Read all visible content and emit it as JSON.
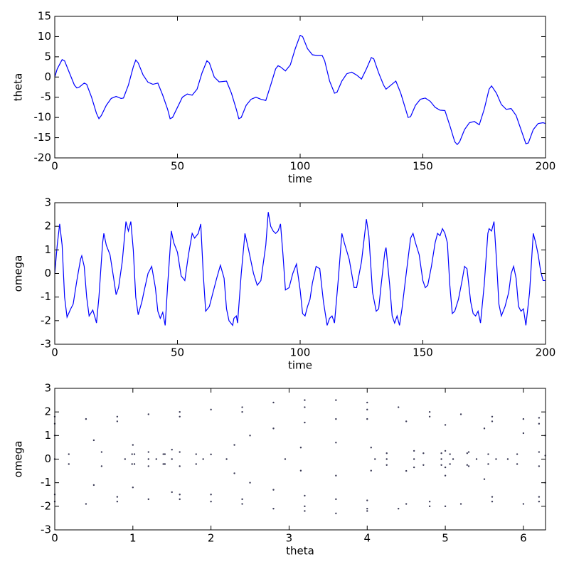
{
  "chart_data": [
    {
      "type": "line",
      "xlabel": "time",
      "ylabel": "theta",
      "color": "#0000ff",
      "xlim": [
        0,
        200
      ],
      "ylim": [
        -20,
        15
      ],
      "xticks": [
        0,
        50,
        100,
        150,
        200
      ],
      "yticks": [
        -20,
        -15,
        -10,
        -5,
        0,
        5,
        10,
        15
      ],
      "x": [
        0,
        1,
        3,
        4,
        6,
        8,
        9,
        10,
        12,
        13,
        15,
        17,
        18,
        19,
        21,
        23,
        25,
        27,
        28,
        30,
        32,
        33,
        34,
        36,
        38,
        40,
        42,
        44,
        46,
        47,
        48,
        50,
        52,
        54,
        56,
        58,
        60,
        62,
        63,
        65,
        67,
        70,
        72,
        74,
        75,
        76,
        78,
        80,
        82,
        84,
        86,
        88,
        90,
        91,
        92,
        94,
        96,
        98,
        100,
        101,
        103,
        105,
        107,
        109,
        110,
        112,
        114,
        115,
        117,
        119,
        121,
        123,
        125,
        127,
        129,
        130,
        132,
        134,
        135,
        137,
        139,
        141,
        143,
        144,
        145,
        147,
        149,
        151,
        153,
        155,
        157,
        159,
        161,
        163,
        164,
        165,
        167,
        169,
        171,
        173,
        175,
        177,
        178,
        180,
        182,
        184,
        186,
        188,
        190,
        192,
        193,
        195,
        197,
        199,
        200
      ],
      "values": [
        0,
        2,
        4.3,
        4,
        1,
        -2,
        -2.7,
        -2.5,
        -1.5,
        -1.8,
        -5,
        -9,
        -10.3,
        -9.5,
        -7,
        -5.3,
        -4.8,
        -5.3,
        -5.2,
        -2,
        2.5,
        4.2,
        3.5,
        0.5,
        -1.3,
        -1.8,
        -1.5,
        -4.5,
        -8,
        -10.3,
        -10,
        -7.5,
        -5,
        -4.2,
        -4.5,
        -3,
        1,
        4,
        3.5,
        0,
        -1.2,
        -1,
        -4,
        -8,
        -10.3,
        -10,
        -7,
        -5.5,
        -5,
        -5.5,
        -5.8,
        -2,
        2,
        2.8,
        2.5,
        1.5,
        3,
        7,
        10.3,
        10,
        7,
        5.5,
        5.3,
        5.3,
        4,
        -1,
        -4,
        -3.8,
        -1,
        0.8,
        1.2,
        0.5,
        -0.5,
        2,
        4.8,
        4.5,
        1,
        -2,
        -3,
        -2,
        -1,
        -4,
        -8,
        -10,
        -9.8,
        -7,
        -5.5,
        -5.2,
        -6,
        -7.5,
        -8.2,
        -8.3,
        -12,
        -16,
        -16.7,
        -16,
        -13,
        -11.3,
        -11,
        -11.8,
        -8,
        -3,
        -2.2,
        -4,
        -6.8,
        -8,
        -7.8,
        -9.5,
        -13,
        -16.5,
        -16.3,
        -13,
        -11.5,
        -11.3,
        -11.5
      ]
    },
    {
      "type": "line",
      "xlabel": "time",
      "ylabel": "omega",
      "color": "#0000ff",
      "xlim": [
        0,
        200
      ],
      "ylim": [
        -3,
        3
      ],
      "xticks": [
        0,
        50,
        100,
        150,
        200
      ],
      "yticks": [
        -3,
        -2,
        -1,
        0,
        1,
        2,
        3
      ],
      "x": [
        0,
        1,
        2,
        3,
        4,
        5,
        6.5,
        7.5,
        9,
        10.5,
        11,
        12,
        13,
        14,
        15.5,
        16.5,
        17,
        18,
        19.5,
        20,
        21,
        22.5,
        24,
        25,
        26,
        27.5,
        29,
        30,
        31,
        32,
        33,
        34,
        35.5,
        36.5,
        38,
        39.5,
        41,
        42,
        43,
        44,
        45,
        46,
        47.5,
        48.5,
        50,
        51.5,
        53,
        54.5,
        56,
        57,
        58.5,
        59.5,
        60.5,
        61.5,
        63,
        64.5,
        66,
        67.5,
        69,
        70,
        71,
        72.5,
        73,
        74,
        74.5,
        76,
        77.5,
        79,
        81,
        82.5,
        84,
        86,
        87,
        88,
        89,
        90,
        91,
        92,
        93,
        94,
        95.5,
        97,
        98.5,
        100,
        101,
        102,
        103,
        104,
        105,
        106.5,
        108,
        109.5,
        111,
        112,
        113,
        114,
        115.5,
        117,
        118,
        120,
        122,
        123,
        125,
        127,
        128,
        129.5,
        131,
        132,
        133,
        134.5,
        135,
        136.5,
        137.5,
        138.5,
        139.5,
        140.5,
        141.5,
        143,
        145,
        146,
        147,
        148.5,
        150,
        151,
        152,
        153.5,
        155,
        156,
        157,
        158,
        159,
        160,
        161,
        162,
        163,
        164.5,
        166,
        167,
        168,
        169.5,
        170.5,
        171.5,
        172.5,
        173.5,
        175,
        176.5,
        177,
        178,
        179,
        180,
        181,
        182,
        183.5,
        185,
        186,
        187,
        188,
        189,
        190,
        191,
        192,
        193.5,
        195,
        196,
        197,
        198,
        199,
        200
      ],
      "values": [
        0,
        1.2,
        2.1,
        1.2,
        -1,
        -1.85,
        -1.5,
        -1.3,
        -0.3,
        0.6,
        0.75,
        0.3,
        -1,
        -1.8,
        -1.55,
        -1.9,
        -2.1,
        -1,
        1.3,
        1.7,
        1.2,
        0.8,
        -0.2,
        -0.9,
        -0.6,
        0.5,
        2.2,
        1.8,
        2.2,
        1,
        -1,
        -1.75,
        -1.2,
        -0.7,
        0,
        0.3,
        -0.6,
        -1.6,
        -1.9,
        -1.65,
        -2.2,
        -0.5,
        1.8,
        1.3,
        0.9,
        -0.1,
        -0.3,
        0.8,
        1.7,
        1.5,
        1.7,
        2.1,
        0,
        -1.6,
        -1.4,
        -0.8,
        -0.2,
        0.35,
        -0.2,
        -1.5,
        -2,
        -2.2,
        -1.9,
        -1.8,
        -2.1,
        0,
        1.7,
        1,
        0,
        -0.5,
        -0.3,
        1.2,
        2.6,
        2,
        1.8,
        1.7,
        1.8,
        2.1,
        0.8,
        -0.7,
        -0.6,
        0,
        0.4,
        -0.7,
        -1.7,
        -1.8,
        -1.4,
        -1.1,
        -0.4,
        0.3,
        0.2,
        -1.2,
        -2.2,
        -1.9,
        -1.8,
        -2.1,
        -0.3,
        1.7,
        1.3,
        0.6,
        -0.6,
        -0.6,
        0.5,
        2.3,
        1.6,
        -0.8,
        -1.6,
        -1.5,
        -0.5,
        0.9,
        1.1,
        -0.5,
        -1.8,
        -2.1,
        -1.8,
        -2.2,
        -1.5,
        -0.2,
        1.5,
        1.7,
        1.3,
        0.8,
        -0.3,
        -0.6,
        -0.5,
        0.3,
        1.3,
        1.7,
        1.6,
        1.9,
        1.7,
        1.3,
        -0.5,
        -1.7,
        -1.6,
        -1.1,
        -0.3,
        0.3,
        0.2,
        -1.2,
        -1.7,
        -1.8,
        -1.6,
        -2.1,
        -0.5,
        1.7,
        1.9,
        1.8,
        2.2,
        0.6,
        -1.3,
        -1.8,
        -1.4,
        -0.8,
        0,
        0.3,
        -0.2,
        -1.4,
        -1.6,
        -1.5,
        -2.2,
        -0.8,
        1.7,
        1.3,
        0.8,
        0.1,
        -0.3,
        -0.3
      ]
    },
    {
      "type": "scatter",
      "xlabel": "theta",
      "ylabel": "omega",
      "color": "#3a3a55",
      "xlim": [
        0,
        6.2832
      ],
      "ylim": [
        -3,
        3
      ],
      "xticks": [
        0,
        1,
        2,
        3,
        4,
        5,
        6
      ],
      "yticks": [
        -3,
        -2,
        -1,
        0,
        1,
        2,
        3
      ],
      "x": [
        0,
        0.4,
        0.8,
        1.2,
        1.6,
        2.0,
        2.4,
        2.8,
        3.2,
        3.6,
        4.0,
        4.4,
        4.8,
        5.2,
        5.6,
        6.0,
        6.2,
        0,
        0.8,
        1.6,
        2.4,
        3.2,
        4.0,
        4.8,
        5.6,
        6.2,
        0,
        0.4,
        0.8,
        1.2,
        1.6,
        2.0,
        2.4,
        2.8,
        3.2,
        3.6,
        4.0,
        4.4,
        4.8,
        5.2,
        5.6,
        6.0,
        6.2,
        0,
        0.8,
        1.6,
        2.4,
        3.2,
        4.0,
        4.8,
        5.6,
        6.2,
        2.2,
        2.3,
        2.5,
        2.8,
        3.2,
        3.6,
        4.0,
        4.5,
        5.0,
        5.5,
        6.0,
        6.28,
        2.3,
        2.5,
        2.8,
        3.2,
        3.6,
        4.0,
        4.5,
        5.0,
        0,
        0.5,
        1.0,
        1.5,
        2.0,
        0.5,
        1.0,
        1.5,
        2.0,
        4.5,
        5.0,
        5.5,
        6.28,
        0,
        1.2,
        0.6,
        0.6,
        0.18,
        1.02,
        0.18,
        1.02,
        0.9,
        1.5,
        1.2,
        1.2,
        0.99,
        1.41,
        0.99,
        1.41,
        1.3,
        1.9,
        1.6,
        1.6,
        1.39,
        1.81,
        1.39,
        1.81,
        4.1,
        5.1,
        4.6,
        4.6,
        4.25,
        4.95,
        4.25,
        4.95,
        4.6,
        5.4,
        5.0,
        5.0,
        4.72,
        5.28,
        4.72,
        5.28,
        4.95,
        5.65,
        5.3,
        5.3,
        5.06,
        5.55,
        5.06,
        5.55,
        2.95,
        4.25,
        3.6,
        3.6,
        3.15,
        4.05,
        3.15,
        4.05,
        5.8,
        6.28,
        6.2,
        6.2,
        5.92,
        5.92
      ],
      "values": [
        1.8,
        1.7,
        1.8,
        1.9,
        2.0,
        2.1,
        2.2,
        2.4,
        2.5,
        2.5,
        2.4,
        2.2,
        2.0,
        1.9,
        1.8,
        1.7,
        1.75,
        1.5,
        1.6,
        1.8,
        2.0,
        2.2,
        2.1,
        1.8,
        1.6,
        1.5,
        -1.8,
        -1.9,
        -1.8,
        -1.7,
        -1.7,
        -1.8,
        -1.9,
        -2.1,
        -2.2,
        -2.3,
        -2.2,
        -2.1,
        -2.0,
        -1.9,
        -1.8,
        -1.9,
        -1.8,
        -1.5,
        -1.6,
        -1.5,
        -1.7,
        -2.0,
        -2.1,
        -1.8,
        -1.6,
        -1.6,
        0,
        0.6,
        1.0,
        1.3,
        1.55,
        1.7,
        1.7,
        1.6,
        1.45,
        1.3,
        1.1,
        1.0,
        -0.6,
        -1.0,
        -1.3,
        -1.55,
        -1.7,
        -1.75,
        -1.9,
        -2.0,
        1.0,
        0.8,
        0.6,
        0.4,
        0.2,
        -1.1,
        -1.2,
        -1.4,
        -1.5,
        -0.5,
        -0.7,
        -0.85,
        -1.0,
        0,
        0,
        0.3,
        -0.3,
        0.21,
        0.21,
        -0.21,
        -0.21,
        0,
        0,
        0.3,
        -0.3,
        0.21,
        0.21,
        -0.21,
        -0.21,
        0,
        0,
        0.3,
        -0.3,
        0.21,
        0.21,
        -0.21,
        -0.21,
        0,
        0,
        0.35,
        -0.35,
        0.25,
        0.25,
        -0.25,
        -0.25,
        0,
        0,
        0.35,
        -0.35,
        0.25,
        0.25,
        -0.25,
        -0.25,
        0,
        0,
        0.3,
        -0.3,
        0.21,
        0.21,
        -0.21,
        -0.21,
        0,
        0,
        0.7,
        -0.7,
        0.49,
        0.49,
        -0.49,
        -0.49,
        0,
        0.15,
        0.3,
        -0.3,
        0.21,
        -0.21
      ]
    }
  ]
}
